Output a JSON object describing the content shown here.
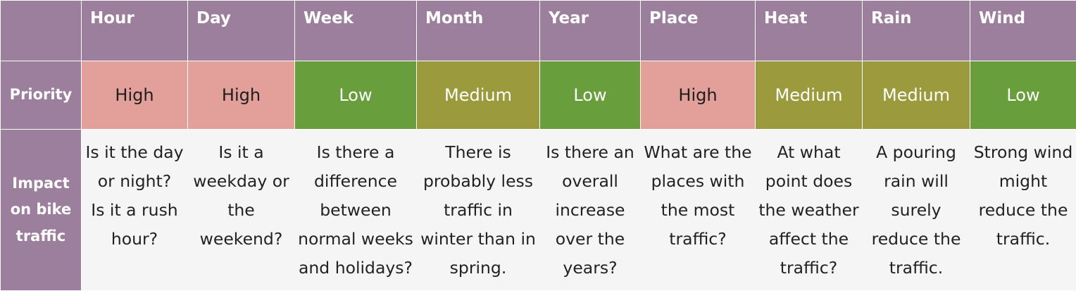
{
  "columns": [
    "Hour",
    "Day",
    "Week",
    "Month",
    "Year",
    "Place",
    "Heat",
    "Rain",
    "Wind"
  ],
  "priority_label": "Priority",
  "priorities": [
    "High",
    "High",
    "Low",
    "Medium",
    "Low",
    "High",
    "Medium",
    "Medium",
    "Low"
  ],
  "impact_label": "Impact\non bike\ntraffic",
  "impacts": [
    "Is it the day\nor night?\nIs it a rush\nhour?",
    "Is it a\nweekday or\nthe\nweekend?",
    "Is there a\ndifference\nbetween\nnormal weeks\nand holidays?",
    "There is\nprobably less\ntraffic in\nwinter than in\nspring.",
    "Is there an\noverall\nincrease\nover the\nyears?",
    "What are the\nplaces with\nthe most\ntraffic?",
    "At what\npoint does\nthe weather\naffect the\ntraffic?",
    "A pouring\nrain will\nsurely\nreduce the\ntraffic.",
    "Strong wind\nmight\nreduce the\ntraffic."
  ],
  "colors": {
    "header_bg": "#9b7f9c",
    "high": "#e3a09b",
    "medium": "#9b9a3c",
    "low": "#689e3c",
    "impact_bg": "#f5f5f5"
  }
}
